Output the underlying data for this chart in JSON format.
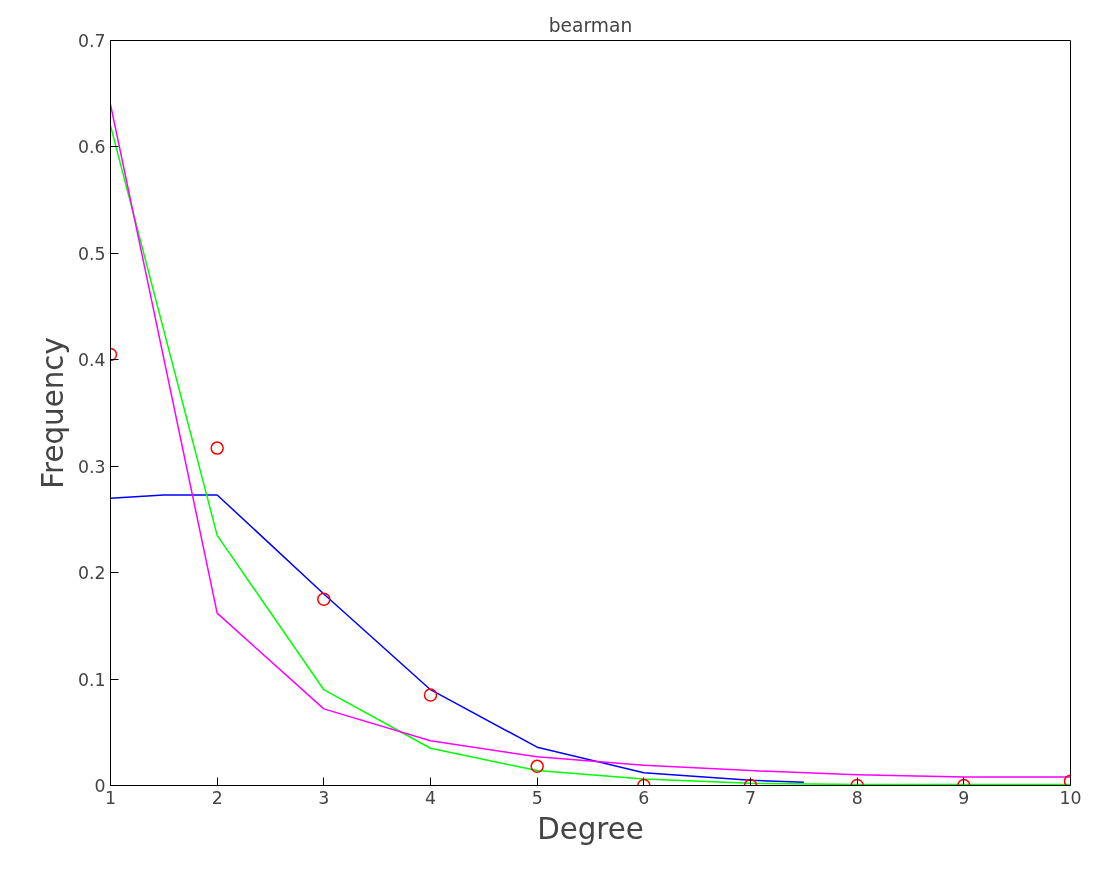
{
  "chart_data": {
    "type": "line",
    "title": "bearman",
    "xlabel": "Degree",
    "ylabel": "Frequency",
    "xlim": [
      1,
      10
    ],
    "ylim": [
      0,
      0.7
    ],
    "xticks": [
      1,
      2,
      3,
      4,
      5,
      6,
      7,
      8,
      9,
      10
    ],
    "yticks": [
      0,
      0.1,
      0.2,
      0.3,
      0.4,
      0.5,
      0.6,
      0.7
    ],
    "grid": false,
    "series": [
      {
        "type": "scatter",
        "marker": "circle",
        "color": "#ff0000",
        "x": [
          1,
          2,
          3,
          4,
          5,
          6,
          7,
          8,
          9,
          10
        ],
        "values": [
          0.405,
          0.317,
          0.175,
          0.085,
          0.018,
          0,
          0,
          0,
          0,
          0.004
        ]
      },
      {
        "color": "#0000ff",
        "x": [
          1,
          1.5,
          2,
          3,
          4,
          5,
          6,
          7,
          7.5
        ],
        "values": [
          0.27,
          0.273,
          0.273,
          0.18,
          0.09,
          0.036,
          0.012,
          0.005,
          0.003
        ]
      },
      {
        "color": "#00ff00",
        "x": [
          1,
          2,
          3,
          4,
          5,
          6,
          7,
          8,
          9,
          10
        ],
        "values": [
          0.62,
          0.235,
          0.09,
          0.035,
          0.014,
          0.006,
          0.002,
          0.001,
          0.001,
          0.001
        ]
      },
      {
        "color": "#ff00ff",
        "x": [
          1,
          2,
          3,
          4,
          5,
          6,
          7,
          8,
          9,
          10
        ],
        "values": [
          0.64,
          0.162,
          0.072,
          0.042,
          0.027,
          0.019,
          0.014,
          0.01,
          0.008,
          0.008
        ]
      }
    ]
  }
}
